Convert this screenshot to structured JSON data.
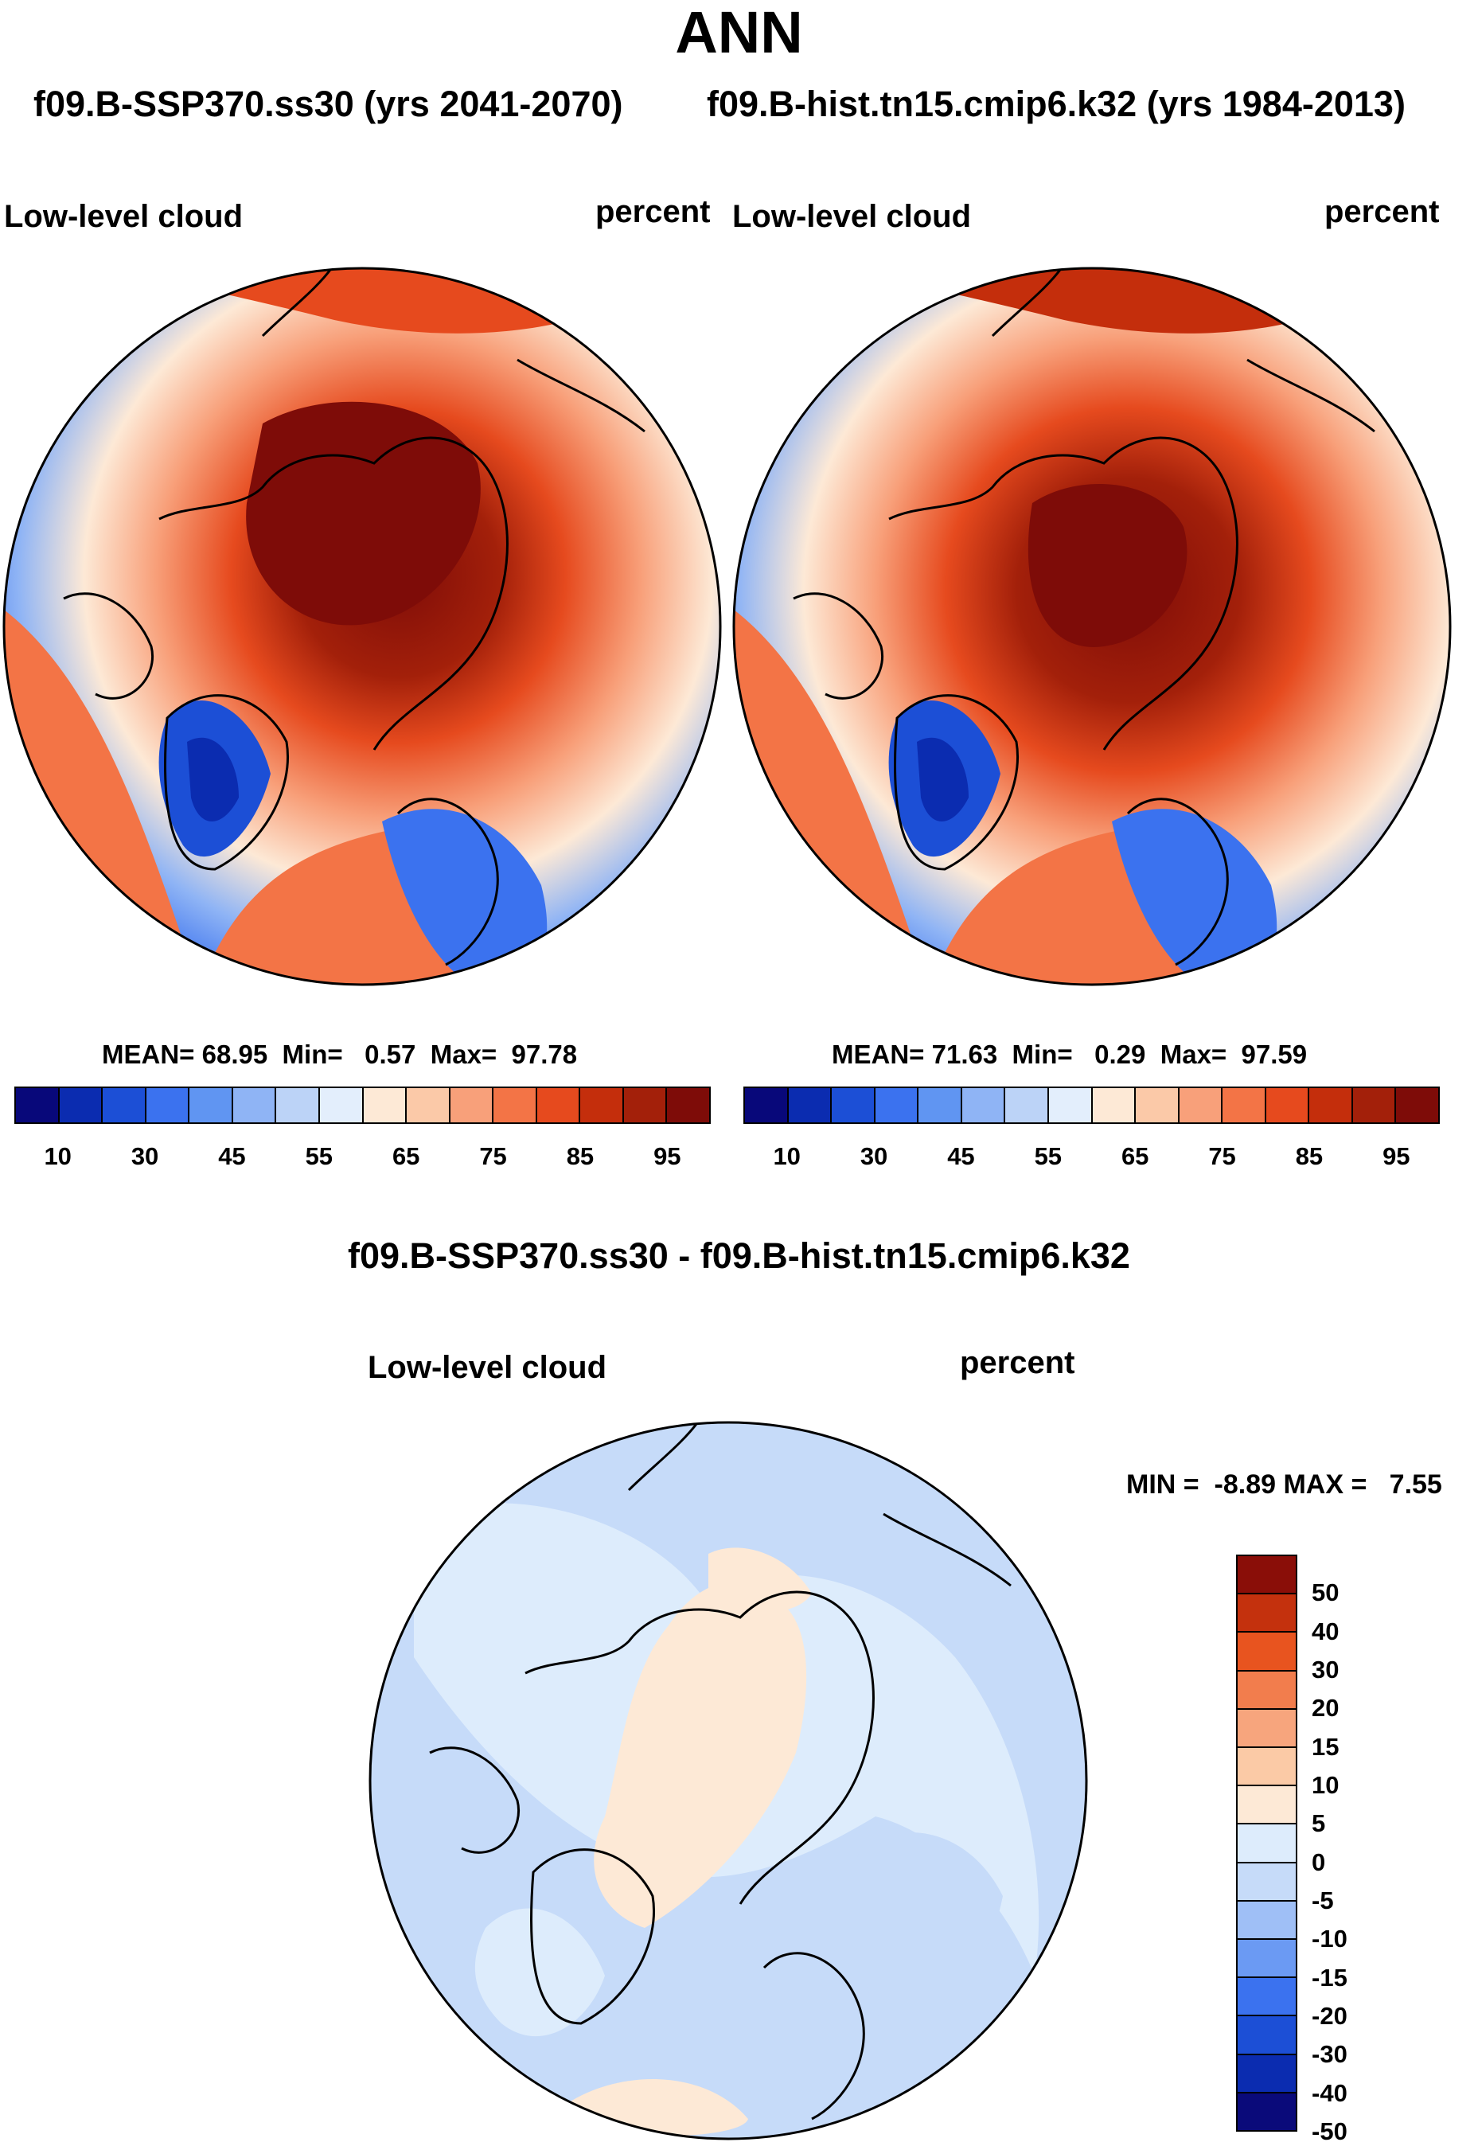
{
  "title": "ANN",
  "subtitle_left": "f09.B-SSP370.ss30 (yrs 2041-2070)",
  "subtitle_right": "f09.B-hist.tn15.cmip6.k32 (yrs 1984-2013)",
  "panels": [
    {
      "variable": "Low-level cloud",
      "units": "percent",
      "stats": {
        "mean_label": "MEAN=",
        "mean": "68.95",
        "min_label": "Min=",
        "min": "0.57",
        "max_label": "Max=",
        "max": "97.78"
      }
    },
    {
      "variable": "Low-level cloud",
      "units": "percent",
      "stats": {
        "mean_label": "MEAN=",
        "mean": "71.63",
        "min_label": "Min=",
        "min": "0.29",
        "max_label": "Max=",
        "max": "97.59"
      }
    }
  ],
  "diff": {
    "title": "f09.B-SSP370.ss30 - f09.B-hist.tn15.cmip6.k32",
    "variable": "Low-level cloud",
    "units": "percent",
    "minmax": "MIN =  -8.89 MAX =   7.55"
  },
  "colorbar_abs": {
    "colors": [
      "#08087a",
      "#0b2cb0",
      "#1c4fd6",
      "#3b72ef",
      "#6095f2",
      "#8fb4f5",
      "#bcd3f7",
      "#e3eefc",
      "#fde9d6",
      "#fbc9a8",
      "#f8a07a",
      "#f37446",
      "#e64a1e",
      "#c42e0c",
      "#a3200a",
      "#7e0c08"
    ],
    "tick_labels": [
      "10",
      "30",
      "45",
      "55",
      "65",
      "75",
      "85",
      "95"
    ]
  },
  "colorbar_diff": {
    "colors": [
      "#0a0a7a",
      "#0b2cb0",
      "#1c4fd6",
      "#3b72ef",
      "#6b9af3",
      "#9fbff6",
      "#c6dbf9",
      "#ddecfc",
      "#fde9d6",
      "#fbcaa6",
      "#f7a57d",
      "#f27d4d",
      "#e8541f",
      "#c4310d",
      "#8a0e08"
    ],
    "tick_labels": [
      "50",
      "40",
      "30",
      "20",
      "15",
      "10",
      "5",
      "0",
      "-5",
      "-10",
      "-15",
      "-20",
      "-30",
      "-40",
      "-50"
    ]
  }
}
